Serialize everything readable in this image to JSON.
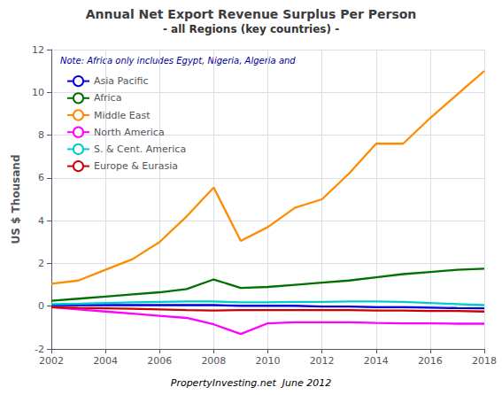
{
  "chart_data": {
    "type": "line",
    "title": "Annual Net Export Revenue Surplus Per Person",
    "subtitle": "- all Regions (key countries) -",
    "y_label": "US $ Thousand",
    "annotations": [
      "Note: Africa only includes Egypt, Nigeria, Algeria and",
      "PropertyInvesting.net  June 2012"
    ],
    "x": [
      2002,
      2003,
      2004,
      2005,
      2006,
      2007,
      2008,
      2009,
      2010,
      2011,
      2012,
      2013,
      2014,
      2015,
      2016,
      2017,
      2018
    ],
    "series": [
      {
        "name": "Asia Pacific",
        "color": "#0000DD",
        "values": [
          0.05,
          0.05,
          0.05,
          0.05,
          0.05,
          0.05,
          0.05,
          0.02,
          0.02,
          0.02,
          -0.02,
          -0.02,
          -0.05,
          -0.05,
          -0.07,
          -0.09,
          -0.1
        ]
      },
      {
        "name": "Africa",
        "color": "#007000",
        "values": [
          0.25,
          0.35,
          0.45,
          0.55,
          0.65,
          0.8,
          1.25,
          0.85,
          0.9,
          1.0,
          1.1,
          1.2,
          1.35,
          1.5,
          1.6,
          1.7,
          1.75
        ]
      },
      {
        "name": "Middle East",
        "color": "#FF8C00",
        "values": [
          1.05,
          1.2,
          1.7,
          2.2,
          3.0,
          4.2,
          5.55,
          3.05,
          3.7,
          4.6,
          5.0,
          6.2,
          7.6,
          7.6,
          8.8,
          9.9,
          11.0
        ]
      },
      {
        "name": "North America",
        "color": "#FF00FF",
        "values": [
          -0.05,
          -0.15,
          -0.25,
          -0.35,
          -0.45,
          -0.55,
          -0.85,
          -1.3,
          -0.8,
          -0.75,
          -0.75,
          -0.75,
          -0.78,
          -0.8,
          -0.8,
          -0.82,
          -0.82
        ]
      },
      {
        "name": "S. & Cent. America",
        "color": "#00CCCC",
        "values": [
          0.1,
          0.12,
          0.15,
          0.18,
          0.2,
          0.22,
          0.22,
          0.18,
          0.18,
          0.2,
          0.2,
          0.22,
          0.22,
          0.2,
          0.15,
          0.1,
          0.05
        ]
      },
      {
        "name": "Europe & Eurasia",
        "color": "#CC0000",
        "values": [
          -0.05,
          -0.08,
          -0.1,
          -0.12,
          -0.15,
          -0.18,
          -0.2,
          -0.18,
          -0.18,
          -0.18,
          -0.18,
          -0.18,
          -0.2,
          -0.2,
          -0.22,
          -0.22,
          -0.25
        ]
      }
    ],
    "xlim": [
      2002,
      2018
    ],
    "xticks": [
      2002,
      2004,
      2006,
      2008,
      2010,
      2012,
      2014,
      2016,
      2018
    ],
    "ylim": [
      -2,
      12
    ],
    "yticks": [
      -2,
      0,
      2,
      4,
      6,
      8,
      10,
      12
    ],
    "grid": true,
    "legend": "upper left"
  }
}
